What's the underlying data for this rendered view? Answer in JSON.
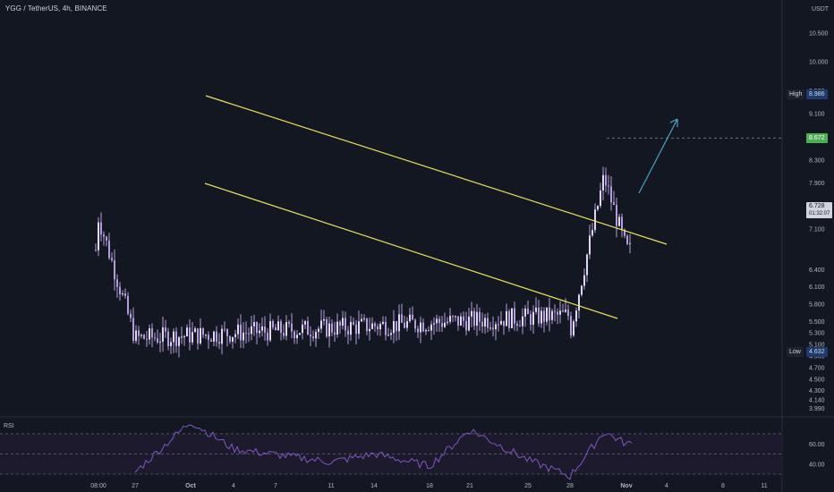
{
  "header": {
    "title": "YGG / TetherUS, 4h, BINANCE"
  },
  "price_axis": {
    "currency": "USDT",
    "ticks": [
      "10.500",
      "10.000",
      "9.500",
      "9.100",
      "8.300",
      "7.900",
      "7.500",
      "7.100",
      "6.400",
      "6.100",
      "5.800",
      "5.500",
      "5.300",
      "5.100",
      "4.900",
      "4.700",
      "4.500",
      "4.300",
      "4.140",
      "3.990"
    ],
    "high_label": "High",
    "high_value": "8.986",
    "target_value": "8.672",
    "current_price": "6.728",
    "countdown": "01:32:07",
    "low_label": "Low",
    "low_value": "4.632"
  },
  "rsi_panel": {
    "label": "RSI",
    "ticks": [
      "60.00",
      "40.00"
    ]
  },
  "time_axis": {
    "ticks": [
      "08:00",
      "27",
      "Oct",
      "4",
      "7",
      "11",
      "14",
      "18",
      "21",
      "25",
      "28",
      "Nov",
      "4",
      "8",
      "11"
    ]
  },
  "chart_data": {
    "type": "candlestick",
    "symbol": "YGG / TetherUS",
    "interval": "4h",
    "exchange": "BINANCE",
    "price_range": [
      3.9,
      10.6
    ],
    "rsi_range": [
      30,
      85
    ],
    "close_path": [
      {
        "t": "08:00",
        "close": 7.3
      },
      {
        "t": "27",
        "close": 5.2
      },
      {
        "t": "28",
        "close": 5.6
      },
      {
        "t": "Oct",
        "close": 7.6
      },
      {
        "t": "4",
        "close": 7.2
      },
      {
        "t": "7",
        "close": 7.5
      },
      {
        "t": "11",
        "close": 6.4
      },
      {
        "t": "14",
        "close": 6.8
      },
      {
        "t": "18",
        "close": 6.2
      },
      {
        "t": "21",
        "close": 6.7
      },
      {
        "t": "25",
        "close": 6.4
      },
      {
        "t": "28",
        "close": 5.3
      },
      {
        "t": "30",
        "close": 8.0
      },
      {
        "t": "Nov",
        "close": 6.73
      }
    ],
    "channel": {
      "upper": [
        {
          "t": "Oct",
          "price": 9.0
        },
        {
          "t": "Nov",
          "price": 6.05
        }
      ],
      "lower": [
        {
          "t": "Oct",
          "price": 7.1
        },
        {
          "t": "Nov",
          "price": 5.05
        }
      ]
    },
    "target_price": 8.672,
    "rsi_path": [
      {
        "t": "27",
        "v": 32
      },
      {
        "t": "Oct",
        "v": 82
      },
      {
        "t": "4",
        "v": 55
      },
      {
        "t": "11",
        "v": 42
      },
      {
        "t": "14",
        "v": 50
      },
      {
        "t": "18",
        "v": 38
      },
      {
        "t": "21",
        "v": 74
      },
      {
        "t": "25",
        "v": 44
      },
      {
        "t": "28",
        "v": 28
      },
      {
        "t": "30",
        "v": 72
      },
      {
        "t": "Nov",
        "v": 60
      }
    ]
  },
  "colors": {
    "background": "#131722",
    "candle": "#b39ddb",
    "channel": "#e8e05a",
    "arrow": "#4ba3c7",
    "rsi_line": "#7e57c2",
    "rsi_band": "#1e1a2e",
    "target_tag": "#4caf50",
    "axis_text": "#b2b5be"
  }
}
